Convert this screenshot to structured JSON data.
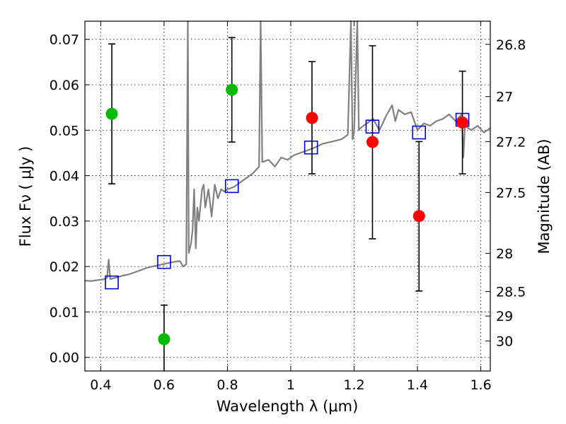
{
  "chart_data": {
    "type": "scatter",
    "xlabel": "Wavelength  λ (μm)",
    "ylabel": "Flux  Fν  ( μJy )",
    "ylabel_right": "Magnitude (AB)",
    "xlim": [
      0.35,
      1.63
    ],
    "ylim": [
      -0.003,
      0.074
    ],
    "grid": true,
    "x_ticks": [
      0.4,
      0.6,
      0.8,
      1.0,
      1.2,
      1.4,
      1.6
    ],
    "x_tick_labels": [
      "0.4",
      "0.6",
      "0.8",
      "1",
      "1.2",
      "1.4",
      "1.6"
    ],
    "y_ticks": [
      0.0,
      0.01,
      0.02,
      0.03,
      0.04,
      0.05,
      0.06,
      0.07
    ],
    "y_tick_labels": [
      "0.00",
      "0.01",
      "0.02",
      "0.03",
      "0.04",
      "0.05",
      "0.06",
      "0.07"
    ],
    "right_ticks": [
      {
        "flux": 0.0689,
        "label": "26.8"
      },
      {
        "flux": 0.0574,
        "label": "27"
      },
      {
        "flux": 0.0475,
        "label": "27.2"
      },
      {
        "flux": 0.0363,
        "label": "27.5"
      },
      {
        "flux": 0.0229,
        "label": "28"
      },
      {
        "flux": 0.0145,
        "label": "28.5"
      },
      {
        "flux": 0.0091,
        "label": "29"
      },
      {
        "flux": 0.0036,
        "label": "30"
      }
    ],
    "series": [
      {
        "kind": "model_spectrum",
        "color": "#808080",
        "points": [
          [
            0.35,
            0.0169
          ],
          [
            0.37,
            0.0168
          ],
          [
            0.39,
            0.017
          ],
          [
            0.41,
            0.0172
          ],
          [
            0.42,
            0.0175
          ],
          [
            0.425,
            0.0215
          ],
          [
            0.43,
            0.0172
          ],
          [
            0.45,
            0.0176
          ],
          [
            0.47,
            0.018
          ],
          [
            0.49,
            0.0183
          ],
          [
            0.51,
            0.0188
          ],
          [
            0.53,
            0.0193
          ],
          [
            0.55,
            0.0198
          ],
          [
            0.57,
            0.0201
          ],
          [
            0.59,
            0.0204
          ],
          [
            0.61,
            0.0207
          ],
          [
            0.63,
            0.021
          ],
          [
            0.65,
            0.0212
          ],
          [
            0.66,
            0.02
          ],
          [
            0.67,
            0.0205
          ],
          [
            0.675,
            0.074
          ],
          [
            0.678,
            0.023
          ],
          [
            0.685,
            0.025
          ],
          [
            0.69,
            0.028
          ],
          [
            0.695,
            0.037
          ],
          [
            0.7,
            0.024
          ],
          [
            0.705,
            0.033
          ],
          [
            0.71,
            0.03
          ],
          [
            0.72,
            0.037
          ],
          [
            0.725,
            0.038
          ],
          [
            0.73,
            0.033
          ],
          [
            0.74,
            0.037
          ],
          [
            0.75,
            0.031
          ],
          [
            0.76,
            0.038
          ],
          [
            0.77,
            0.035
          ],
          [
            0.78,
            0.037
          ],
          [
            0.79,
            0.0365
          ],
          [
            0.8,
            0.037
          ],
          [
            0.82,
            0.0375
          ],
          [
            0.84,
            0.0385
          ],
          [
            0.86,
            0.0395
          ],
          [
            0.88,
            0.0405
          ],
          [
            0.9,
            0.042
          ],
          [
            0.905,
            0.074
          ],
          [
            0.91,
            0.043
          ],
          [
            0.93,
            0.0435
          ],
          [
            0.95,
            0.042
          ],
          [
            0.97,
            0.044
          ],
          [
            0.99,
            0.0435
          ],
          [
            1.01,
            0.0445
          ],
          [
            1.03,
            0.045
          ],
          [
            1.05,
            0.0455
          ],
          [
            1.07,
            0.046
          ],
          [
            1.1,
            0.047
          ],
          [
            1.13,
            0.0475
          ],
          [
            1.16,
            0.048
          ],
          [
            1.18,
            0.049
          ],
          [
            1.19,
            0.074
          ],
          [
            1.195,
            0.048
          ],
          [
            1.2,
            0.0495
          ],
          [
            1.21,
            0.074
          ],
          [
            1.215,
            0.05
          ],
          [
            1.22,
            0.0505
          ],
          [
            1.24,
            0.0515
          ],
          [
            1.26,
            0.0525
          ],
          [
            1.28,
            0.05
          ],
          [
            1.3,
            0.053
          ],
          [
            1.32,
            0.0555
          ],
          [
            1.33,
            0.052
          ],
          [
            1.34,
            0.0545
          ],
          [
            1.36,
            0.0535
          ],
          [
            1.38,
            0.054
          ],
          [
            1.4,
            0.05
          ],
          [
            1.42,
            0.0515
          ],
          [
            1.44,
            0.051
          ],
          [
            1.46,
            0.052
          ],
          [
            1.48,
            0.0525
          ],
          [
            1.5,
            0.0535
          ],
          [
            1.52,
            0.052
          ],
          [
            1.54,
            0.0535
          ],
          [
            1.545,
            0.044
          ],
          [
            1.55,
            0.051
          ],
          [
            1.57,
            0.05
          ],
          [
            1.59,
            0.051
          ],
          [
            1.61,
            0.0495
          ],
          [
            1.63,
            0.0505
          ]
        ]
      },
      {
        "kind": "model_band_flux",
        "marker": "open-square",
        "color": "#0000cc",
        "x": [
          0.435,
          0.6,
          0.814,
          1.064,
          1.258,
          1.405,
          1.542
        ],
        "y": [
          0.0165,
          0.021,
          0.0377,
          0.0462,
          0.0508,
          0.0495,
          0.0523
        ]
      },
      {
        "kind": "observed_detections",
        "marker": "filled-circle",
        "color": "#ff0000",
        "x": [
          1.067,
          1.258,
          1.405,
          1.542
        ],
        "y": [
          0.0527,
          0.0474,
          0.0311,
          0.0517
        ],
        "err_low": [
          0.0123,
          0.0213,
          0.0165,
          0.0113
        ],
        "err_high": [
          0.0124,
          0.0212,
          0.0164,
          0.0113
        ]
      },
      {
        "kind": "observed_limits",
        "marker": "filled-circle",
        "color": "#00bb00",
        "x": [
          0.435,
          0.6,
          0.814
        ],
        "y": [
          0.0536,
          0.004,
          0.0589
        ],
        "err_low": [
          0.0154,
          0.0075,
          0.0115
        ],
        "err_high": [
          0.0154,
          0.0075,
          0.0115
        ]
      }
    ]
  }
}
